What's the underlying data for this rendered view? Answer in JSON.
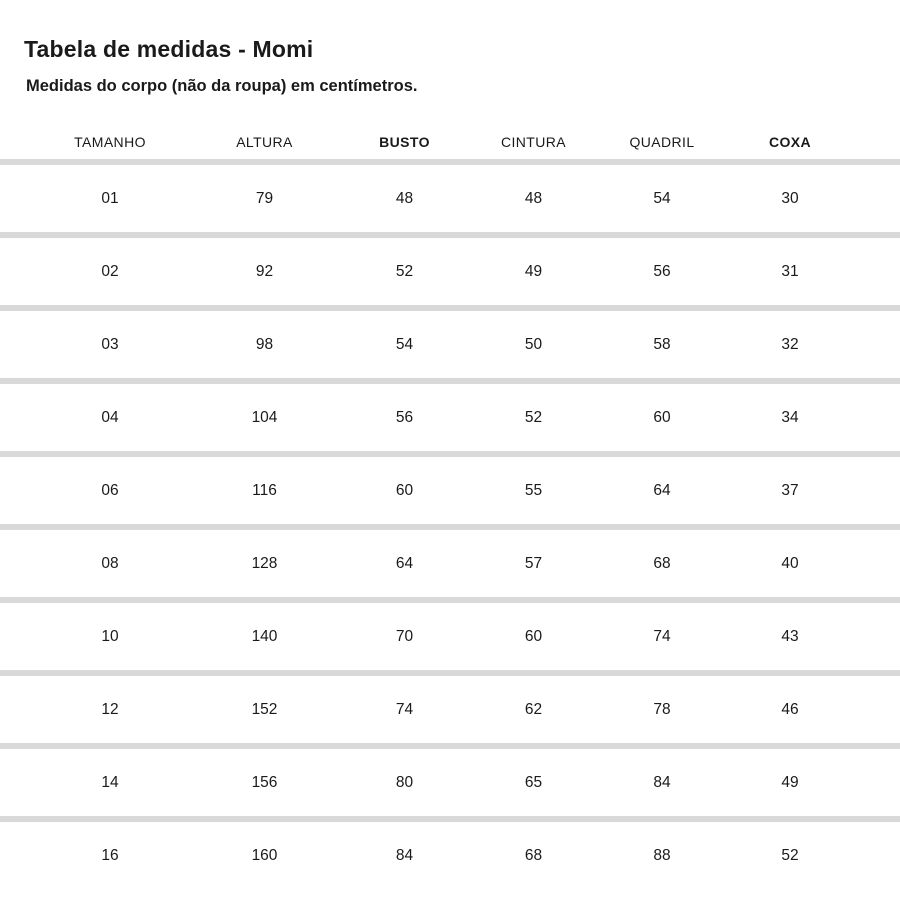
{
  "chart_data": {
    "type": "table",
    "title": "Tabela de medidas - Momi",
    "subtitle": "Medidas do corpo (não da roupa) em centímetros.",
    "unit": "cm",
    "columns": [
      {
        "label": "TAMANHO",
        "bold": false
      },
      {
        "label": "ALTURA",
        "bold": false
      },
      {
        "label": "BUSTO",
        "bold": true
      },
      {
        "label": "CINTURA",
        "bold": false
      },
      {
        "label": "QUADRIL",
        "bold": false
      },
      {
        "label": "COXA",
        "bold": true
      }
    ],
    "rows": [
      [
        "01",
        "79",
        "48",
        "48",
        "54",
        "30"
      ],
      [
        "02",
        "92",
        "52",
        "49",
        "56",
        "31"
      ],
      [
        "03",
        "98",
        "54",
        "50",
        "58",
        "32"
      ],
      [
        "04",
        "104",
        "56",
        "52",
        "60",
        "34"
      ],
      [
        "06",
        "116",
        "60",
        "55",
        "64",
        "37"
      ],
      [
        "08",
        "128",
        "64",
        "57",
        "68",
        "40"
      ],
      [
        "10",
        "140",
        "70",
        "60",
        "74",
        "43"
      ],
      [
        "12",
        "152",
        "74",
        "62",
        "78",
        "46"
      ],
      [
        "14",
        "156",
        "80",
        "65",
        "84",
        "49"
      ],
      [
        "16",
        "160",
        "84",
        "68",
        "88",
        "52"
      ]
    ]
  },
  "colors": {
    "text": "#1a1a1a",
    "separator": "#d9d9d9",
    "background": "#ffffff"
  }
}
